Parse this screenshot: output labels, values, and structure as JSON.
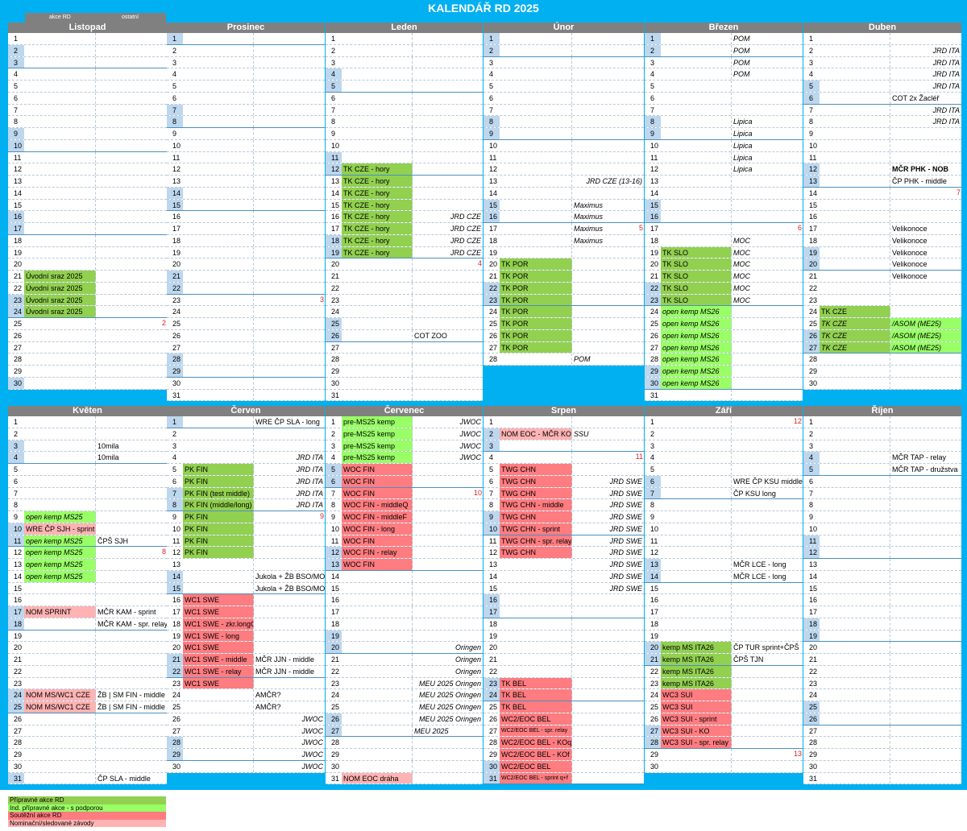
{
  "title": "KALENDÁŘ RD 2025",
  "header_labels": {
    "left": "akce RD",
    "right": "ostatní"
  },
  "legend": [
    {
      "label": "Přípravné akce RD",
      "kind": "prep"
    },
    {
      "label": "Ind. přípravné akce - s podporou",
      "kind": "prepi"
    },
    {
      "label": "Soutěžní akce RD",
      "kind": "comp"
    },
    {
      "label": "Nominační/sledované závody",
      "kind": "nom"
    }
  ],
  "months": [
    {
      "name": "Listopad",
      "days": 30,
      "weekend": [
        2,
        3,
        9,
        10,
        16,
        17,
        23,
        24,
        30
      ],
      "weekEnd": [
        3,
        10,
        17,
        24
      ],
      "c1": {
        "21": [
          "Úvodní sraz 2025",
          "prep"
        ],
        "22": [
          "Úvodní sraz 2025",
          "prep"
        ],
        "23": [
          "Úvodní sraz 2025",
          "prep"
        ],
        "24": [
          "Úvodní sraz 2025",
          "prep"
        ]
      },
      "c2": {},
      "wk": {
        "25": "2"
      }
    },
    {
      "name": "Prosinec",
      "days": 31,
      "weekend": [
        1,
        7,
        8,
        14,
        15,
        21,
        22,
        28,
        29
      ],
      "weekEnd": [
        1,
        8,
        15,
        22,
        29
      ],
      "c1": {},
      "c2": {},
      "wk": {
        "23": "3"
      }
    },
    {
      "name": "Leden",
      "days": 31,
      "weekend": [
        4,
        5,
        11,
        12,
        18,
        19,
        25,
        26
      ],
      "weekEnd": [
        5,
        12,
        19,
        26
      ],
      "c1": {
        "12": [
          "TK CZE - hory",
          "prep"
        ],
        "13": [
          "TK CZE - hory",
          "prep"
        ],
        "14": [
          "TK CZE - hory",
          "prep"
        ],
        "15": [
          "TK CZE - hory",
          "prep"
        ],
        "16": [
          "TK CZE - hory",
          "prep"
        ],
        "17": [
          "TK CZE - hory",
          "prep"
        ],
        "18": [
          "TK CZE - hory",
          "prep"
        ],
        "19": [
          "TK CZE - hory",
          "prep"
        ]
      },
      "c2": {
        "16": [
          "JRD CZE",
          "r"
        ],
        "17": [
          "JRD CZE",
          "r"
        ],
        "18": [
          "JRD CZE",
          "r"
        ],
        "19": [
          "JRD CZE",
          "r"
        ],
        "26": [
          "COT ZOO",
          "l"
        ]
      },
      "wk": {
        "20": "4"
      }
    },
    {
      "name": "Únor",
      "days": 28,
      "weekend": [
        1,
        2,
        8,
        9,
        15,
        16,
        22,
        23
      ],
      "weekEnd": [
        2,
        9,
        16,
        23
      ],
      "c1": {
        "20": [
          "TK POR",
          "prep"
        ],
        "21": [
          "TK POR",
          "prep"
        ],
        "22": [
          "TK POR",
          "prep"
        ],
        "23": [
          "TK POR",
          "prep"
        ],
        "24": [
          "TK POR",
          "prep"
        ],
        "25": [
          "TK POR",
          "prep"
        ],
        "26": [
          "TK POR",
          "prep"
        ],
        "27": [
          "TK POR",
          "prep"
        ]
      },
      "c2": {
        "13": [
          "JRD CZE (13-16)",
          "r"
        ],
        "15": [
          "Maximus",
          "i"
        ],
        "16": [
          "Maximus",
          "i"
        ],
        "17": [
          "Maximus",
          "i"
        ],
        "18": [
          "Maximus",
          "i"
        ],
        "28": [
          "POM",
          "i"
        ]
      },
      "wk": {
        "17": "5"
      }
    },
    {
      "name": "Březen",
      "days": 31,
      "weekend": [
        1,
        2,
        8,
        9,
        15,
        16,
        22,
        23,
        29,
        30
      ],
      "weekEnd": [
        2,
        9,
        16,
        23,
        30
      ],
      "c1": {
        "19": [
          "TK SLO",
          "prep"
        ],
        "20": [
          "TK SLO",
          "prep"
        ],
        "21": [
          "TK SLO",
          "prep"
        ],
        "22": [
          "TK SLO",
          "prep"
        ],
        "23": [
          "TK SLO",
          "prep"
        ],
        "24": [
          "open kemp MS26",
          "prepi"
        ],
        "25": [
          "open kemp MS26",
          "prepi"
        ],
        "26": [
          "open kemp MS26",
          "prepi"
        ],
        "27": [
          "open kemp MS26",
          "prepi"
        ],
        "28": [
          "open kemp MS26",
          "prepi"
        ],
        "29": [
          "open kemp MS26",
          "prepi"
        ],
        "30": [
          "open kemp MS26",
          "prepi"
        ]
      },
      "c2": {
        "1": [
          "POM",
          "i"
        ],
        "2": [
          "POM",
          "i"
        ],
        "3": [
          "POM",
          "i"
        ],
        "4": [
          "POM",
          "i"
        ],
        "8": [
          "Lipica",
          "i"
        ],
        "9": [
          "Lipica",
          "i"
        ],
        "10": [
          "Lipica",
          "i"
        ],
        "11": [
          "Lipica",
          "i"
        ],
        "12": [
          "Lipica",
          "i"
        ],
        "18": [
          "MOC",
          "i"
        ],
        "19": [
          "MOC",
          "i"
        ],
        "20": [
          "MOC",
          "i"
        ],
        "21": [
          "MOC",
          "i"
        ],
        "22": [
          "MOC",
          "i"
        ],
        "23": [
          "MOC",
          "i"
        ]
      },
      "wk": {
        "17": "6"
      }
    },
    {
      "name": "Duben",
      "days": 30,
      "weekend": [
        5,
        6,
        12,
        13,
        19,
        20,
        26,
        27
      ],
      "weekEnd": [
        6,
        13,
        20,
        27
      ],
      "c1": {
        "24": [
          "TK CZE",
          "prep"
        ],
        "25": [
          "TK CZE",
          "prepn"
        ],
        "26": [
          "TK CZE",
          "prepn"
        ],
        "27": [
          "TK CZE",
          "prepn"
        ]
      },
      "c2": {
        "2": [
          "JRD ITA",
          "r"
        ],
        "3": [
          "JRD ITA",
          "r"
        ],
        "4": [
          "JRD ITA",
          "r"
        ],
        "5": [
          "JRD ITA",
          "r"
        ],
        "6": [
          "COT 2x Žacléř",
          "l"
        ],
        "7": [
          "JRD ITA",
          "r"
        ],
        "8": [
          "JRD ITA",
          "r"
        ],
        "12": [
          "MČR PHK - NOB",
          "b"
        ],
        "13": [
          "ČP PHK - middle",
          "l"
        ],
        "17": [
          "Velikonoce",
          "l"
        ],
        "18": [
          "Velikonoce",
          "l"
        ],
        "19": [
          "Velikonoce",
          "l"
        ],
        "20": [
          "Velikonoce",
          "l"
        ],
        "21": [
          "Velikonoce",
          "l"
        ],
        "25": [
          "/ASOM (ME25)",
          "gi"
        ],
        "26": [
          "/ASOM (ME25)",
          "gi"
        ],
        "27": [
          "/ASOM (ME25)",
          "gi"
        ]
      },
      "wk": {
        "14": "7"
      }
    },
    {
      "name": "Květen",
      "days": 31,
      "weekend": [
        3,
        4,
        10,
        11,
        17,
        18,
        24,
        25,
        31
      ],
      "weekEnd": [
        4,
        11,
        18,
        25
      ],
      "c1": {
        "9": [
          "open kemp MS25",
          "prepi"
        ],
        "10": [
          "WRE ČP SJH - sprint",
          "nom"
        ],
        "11": [
          "open kemp MS25",
          "prepi"
        ],
        "12": [
          "open kemp MS25",
          "prepi"
        ],
        "13": [
          "open kemp MS25",
          "prepi"
        ],
        "14": [
          "open kemp MS25",
          "prepi"
        ],
        "17": [
          "NOM SPRINT",
          "nom"
        ],
        "24": [
          "NOM MS/WC1 CZE",
          "nom"
        ],
        "25": [
          "NOM MS/WC1 CZE",
          "nom"
        ]
      },
      "c2": {
        "3": [
          "10mila",
          "l"
        ],
        "4": [
          "10mila",
          "l"
        ],
        "11": [
          "ČPŠ SJH",
          "l"
        ],
        "17": [
          "MČR KAM - sprint",
          "l"
        ],
        "18": [
          "MČR KAM - spr. relay",
          "l"
        ],
        "24": [
          "ŽB | SM FIN - middle",
          "l"
        ],
        "25": [
          "ŽB | SM FIN - middle",
          "l"
        ],
        "31": [
          "ČP SLA - middle",
          "l"
        ]
      },
      "wk": {
        "12": "8"
      }
    },
    {
      "name": "Červen",
      "days": 30,
      "weekend": [
        1,
        7,
        8,
        14,
        15,
        21,
        22,
        28,
        29
      ],
      "weekEnd": [
        1,
        8,
        15,
        22,
        29
      ],
      "c1": {
        "5": [
          "PK FIN",
          "prep"
        ],
        "6": [
          "PK FIN",
          "prep"
        ],
        "7": [
          "PK FIN (test middle)",
          "prep"
        ],
        "8": [
          "PK FIN (middle/long)",
          "prep"
        ],
        "9": [
          "PK FIN",
          "prep"
        ],
        "10": [
          "PK FIN",
          "prep"
        ],
        "11": [
          "PK FIN",
          "prep"
        ],
        "12": [
          "PK FIN",
          "prep"
        ],
        "16": [
          "WC1 SWE",
          "comp"
        ],
        "17": [
          "WC1 SWE",
          "comp"
        ],
        "18": [
          "WC1 SWE - zkr.longQ",
          "comp"
        ],
        "19": [
          "WC1 SWE - long",
          "comp"
        ],
        "20": [
          "WC1 SWE",
          "comp"
        ],
        "21": [
          "WC1 SWE - middle",
          "comp"
        ],
        "22": [
          "WC1 SWE - relay",
          "comp"
        ],
        "23": [
          "WC1 SWE",
          "comp"
        ]
      },
      "c2": {
        "1": [
          "WRE ČP SLA - long",
          "l"
        ],
        "4": [
          "JRD ITA",
          "r"
        ],
        "5": [
          "JRD ITA",
          "r"
        ],
        "6": [
          "JRD ITA",
          "r"
        ],
        "7": [
          "JRD ITA",
          "r"
        ],
        "8": [
          "JRD ITA",
          "r"
        ],
        "14": [
          "Jukola + ŽB BSO/MOV",
          "l"
        ],
        "15": [
          "Jukola + ŽB BSO/MOV",
          "l"
        ],
        "21": [
          "MČR JJN - middle",
          "l"
        ],
        "22": [
          "MČR JJN - middle",
          "l"
        ],
        "24": [
          "AMČR?",
          "l"
        ],
        "25": [
          "AMČR?",
          "l"
        ],
        "26": [
          "JWOC",
          "r"
        ],
        "27": [
          "JWOC",
          "r"
        ],
        "28": [
          "JWOC",
          "r"
        ],
        "29": [
          "JWOC",
          "r"
        ],
        "30": [
          "JWOC",
          "r"
        ]
      },
      "wk": {
        "9": "9"
      }
    },
    {
      "name": "Červenec",
      "days": 31,
      "weekend": [
        5,
        6,
        12,
        13,
        19,
        20,
        26,
        27
      ],
      "weekEnd": [
        6,
        13,
        20,
        27
      ],
      "c1": {
        "1": [
          "pre-MS25 kemp",
          "prep2"
        ],
        "2": [
          "pre-MS25 kemp",
          "prep2"
        ],
        "3": [
          "pre-MS25 kemp",
          "prep2"
        ],
        "4": [
          "pre-MS25 kemp",
          "prep2"
        ],
        "5": [
          "WOC FIN",
          "comp"
        ],
        "6": [
          "WOC FIN",
          "comp"
        ],
        "7": [
          "WOC FIN",
          "comp"
        ],
        "8": [
          "WOC FIN - middleQ",
          "comp"
        ],
        "9": [
          "WOC FIN - middleF",
          "comp"
        ],
        "10": [
          "WOC FIN - long",
          "comp"
        ],
        "11": [
          "WOC FIN",
          "comp"
        ],
        "12": [
          "WOC FIN - relay",
          "comp"
        ],
        "13": [
          "WOC FIN",
          "comp"
        ],
        "31": [
          "NOM EOC dráha",
          "nom"
        ]
      },
      "c2": {
        "1": [
          "JWOC",
          "r"
        ],
        "2": [
          "JWOC",
          "r"
        ],
        "3": [
          "JWOC",
          "r"
        ],
        "4": [
          "JWOC",
          "r"
        ],
        "20": [
          "Oringen",
          "r"
        ],
        "21": [
          "Oringen",
          "r"
        ],
        "22": [
          "Oringen",
          "r"
        ],
        "23": [
          "MEU 2025    Oringen",
          "r"
        ],
        "24": [
          "MEU 2025    Oringen",
          "r"
        ],
        "25": [
          "MEU 2025    Oringen",
          "r"
        ],
        "26": [
          "MEU 2025    Oringen",
          "r"
        ],
        "27": [
          "MEU 2025",
          "rm"
        ]
      },
      "wk": {
        "7": "10"
      }
    },
    {
      "name": "Srpen",
      "days": 31,
      "weekend": [
        2,
        3,
        9,
        10,
        16,
        17,
        23,
        24,
        30,
        31
      ],
      "weekEnd": [
        3,
        10,
        17,
        24,
        31
      ],
      "c1": {
        "2": [
          "NOM EOC - MČR KO",
          "nom"
        ],
        "5": [
          "TWG CHN",
          "comp"
        ],
        "6": [
          "TWG CHN",
          "comp"
        ],
        "7": [
          "TWG CHN",
          "comp"
        ],
        "8": [
          "TWG CHN - middle",
          "comp"
        ],
        "9": [
          "TWG CHN",
          "comp"
        ],
        "10": [
          "TWG CHN - sprint",
          "comp"
        ],
        "11": [
          "TWG CHN - spr. relay",
          "comp"
        ],
        "12": [
          "TWG CHN",
          "comp"
        ],
        "23": [
          "TK BEL",
          "comp"
        ],
        "24": [
          "TK BEL",
          "comp"
        ],
        "25": [
          "TK BEL",
          "comp"
        ],
        "26": [
          "WC2/EOC BEL",
          "comp"
        ],
        "27": [
          "WC2/EOC BEL - spr. relay",
          "comps"
        ],
        "28": [
          "WC2/EOC BEL - KOq",
          "comp"
        ],
        "29": [
          "WC2/EOC BEL - KOf",
          "comp"
        ],
        "30": [
          "WC2/EOC BEL",
          "comp"
        ],
        "31": [
          "WC2/EOC BEL - sprint q+f",
          "comps"
        ]
      },
      "c2": {
        "2": [
          "SSU",
          "i"
        ],
        "6": [
          "JRD SWE",
          "r"
        ],
        "7": [
          "JRD SWE",
          "r"
        ],
        "8": [
          "JRD SWE",
          "r"
        ],
        "9": [
          "JRD SWE",
          "r"
        ],
        "10": [
          "JRD SWE",
          "r"
        ],
        "11": [
          "JRD SWE",
          "r"
        ],
        "12": [
          "JRD SWE",
          "r"
        ],
        "13": [
          "JRD SWE",
          "r"
        ],
        "14": [
          "JRD SWE",
          "r"
        ],
        "15": [
          "JRD SWE",
          "r"
        ]
      },
      "wk": {
        "4": "11"
      }
    },
    {
      "name": "Září",
      "days": 30,
      "weekend": [
        6,
        7,
        13,
        14,
        20,
        21,
        27,
        28
      ],
      "weekEnd": [
        7,
        14,
        21,
        28
      ],
      "c1": {
        "20": [
          "kemp MS ITA26",
          "prep"
        ],
        "21": [
          "kemp MS ITA26",
          "prep"
        ],
        "22": [
          "kemp MS ITA26",
          "prep"
        ],
        "23": [
          "kemp MS ITA26",
          "prep"
        ],
        "24": [
          "WC3 SUI",
          "comp"
        ],
        "25": [
          "WC3 SUI",
          "comp"
        ],
        "26": [
          "WC3 SUI - sprint",
          "comp"
        ],
        "27": [
          "WC3 SUI - KO",
          "comp"
        ],
        "28": [
          "WC3 SUI - spr. relay",
          "comp"
        ]
      },
      "c2": {
        "6": [
          "WRE ČP KSU middle",
          "l"
        ],
        "7": [
          "ČP KSU long",
          "l"
        ],
        "13": [
          "MČR LCE - long",
          "l"
        ],
        "14": [
          "MČR LCE - long",
          "l"
        ],
        "20": [
          "ČP TUR sprint+ČPŠ",
          "l"
        ],
        "21": [
          "ČPŠ TJN",
          "l"
        ]
      },
      "wk": {
        "1": "12",
        "29": "13"
      }
    },
    {
      "name": "Říjen",
      "days": 31,
      "weekend": [
        4,
        5,
        11,
        12,
        18,
        19,
        25,
        26
      ],
      "weekEnd": [
        5,
        12,
        19,
        26
      ],
      "c1": {},
      "c2": {
        "4": [
          "MČR TAP - relay",
          "l"
        ],
        "5": [
          "MČR TAP - družstva",
          "l"
        ]
      },
      "wk": {}
    }
  ]
}
